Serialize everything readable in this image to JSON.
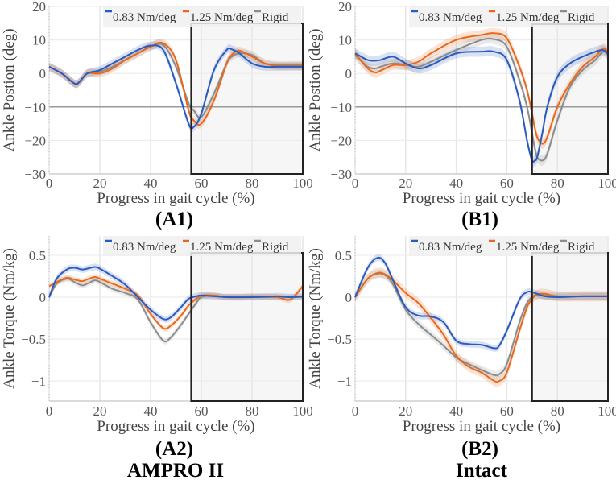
{
  "colors": {
    "blue": "#2a5bbf",
    "orange": "#e8681e",
    "gray": "#8c8c8c"
  },
  "legend": [
    "0.83 Nm/deg",
    "1.25 Nm/deg",
    "Rigid"
  ],
  "columns": {
    "A": "AMPRO II",
    "B": "Intact"
  },
  "chart_data": [
    {
      "id": "A1",
      "type": "line",
      "title": "(A1)",
      "xlabel": "Progress in gait cycle (%)",
      "ylabel": "Ankle Postion (deg)",
      "xlim": [
        0,
        100
      ],
      "ylim": [
        -30,
        20
      ],
      "xticks": [
        "0",
        "20",
        "40",
        "60",
        "80",
        "100"
      ],
      "yticks": [
        "20",
        "10",
        "0",
        "−10",
        "−20",
        "−30"
      ],
      "ytick_values": [
        20,
        10,
        0,
        -10,
        -20,
        -30
      ],
      "highlight_y": -10,
      "shaded_region": [
        56,
        100
      ],
      "x": [
        0,
        5,
        10,
        12,
        15,
        20,
        25,
        30,
        35,
        40,
        45,
        50,
        55,
        57,
        60,
        65,
        70,
        72,
        75,
        80,
        85,
        90,
        95,
        100
      ],
      "series": [
        {
          "name": "0.83 Nm/deg",
          "color": "blue",
          "std": 1.2,
          "values": [
            2,
            0,
            -3,
            -2.5,
            0,
            1,
            3,
            5,
            7,
            8.3,
            7,
            -3,
            -15,
            -16,
            -12,
            1,
            7,
            7.2,
            6,
            3,
            2,
            2,
            2,
            2
          ]
        },
        {
          "name": "1.25 Nm/deg",
          "color": "orange",
          "std": 1.2,
          "values": [
            2,
            0,
            -3,
            -2.5,
            0,
            0,
            1.5,
            4,
            6,
            8,
            9,
            4,
            -11,
            -14,
            -15,
            -8,
            3,
            5.5,
            6.8,
            5,
            3,
            2.2,
            2.2,
            2.2
          ]
        },
        {
          "name": "Rigid",
          "color": "gray",
          "std": 1.2,
          "values": [
            2,
            0,
            -3,
            -2.5,
            0,
            0.5,
            2,
            4,
            6,
            8,
            8.5,
            2,
            -9,
            -11,
            -13,
            -6,
            3,
            5,
            6,
            5.5,
            3,
            2.5,
            2.5,
            2.5
          ]
        }
      ]
    },
    {
      "id": "B1",
      "type": "line",
      "title": "(B1)",
      "xlabel": "Progress in gait cycle (%)",
      "ylabel": "Ankle Postion (deg)",
      "xlim": [
        0,
        100
      ],
      "ylim": [
        -30,
        20
      ],
      "xticks": [
        "0",
        "20",
        "40",
        "60",
        "80",
        "100"
      ],
      "yticks": [
        "20",
        "10",
        "0",
        "−10",
        "−20",
        "−30"
      ],
      "ytick_values": [
        20,
        10,
        0,
        -10,
        -20,
        -30
      ],
      "highlight_y": -10,
      "shaded_region": [
        70,
        100
      ],
      "x": [
        0,
        5,
        8,
        10,
        15,
        20,
        25,
        30,
        40,
        50,
        55,
        60,
        65,
        68,
        70,
        71,
        72,
        74,
        76,
        80,
        85,
        90,
        95,
        98,
        100
      ],
      "series": [
        {
          "name": "0.83 Nm/deg",
          "color": "blue",
          "std": 1.5,
          "values": [
            6,
            4,
            3.8,
            4,
            5,
            3,
            1.5,
            2.5,
            6,
            6.5,
            6.5,
            4,
            -8,
            -20,
            -26,
            -26,
            -25,
            -18,
            -10,
            -1,
            3,
            5,
            6.5,
            7,
            6
          ]
        },
        {
          "name": "1.25 Nm/deg",
          "color": "orange",
          "std": 1.5,
          "values": [
            6,
            1.5,
            0.3,
            0.8,
            2.5,
            2.5,
            3.5,
            6,
            10,
            11.5,
            12,
            10.5,
            2,
            -5,
            -12,
            -16,
            -19,
            -21,
            -19,
            -10,
            -3,
            2,
            5,
            7.5,
            6.5
          ]
        },
        {
          "name": "Rigid",
          "color": "gray",
          "std": 1.5,
          "values": [
            5.5,
            2,
            1.5,
            2,
            3,
            2.5,
            2,
            3.5,
            7,
            10,
            10.2,
            8,
            -2,
            -10,
            -18,
            -22,
            -25,
            -26,
            -24,
            -14,
            -4,
            1,
            4,
            6.5,
            5.5
          ]
        }
      ]
    },
    {
      "id": "A2",
      "type": "line",
      "title": "(A2)",
      "xlabel": "Progress in gait cycle (%)",
      "ylabel": "Ankle Torque (Nm/kg)",
      "xlim": [
        0,
        100
      ],
      "ylim": [
        -1.24,
        0.73
      ],
      "xticks": [
        "0",
        "20",
        "40",
        "60",
        "80",
        "100"
      ],
      "yticks": [
        "0.5",
        "0",
        "−0.5",
        "−1"
      ],
      "ytick_values": [
        0.5,
        0,
        -0.5,
        -1
      ],
      "shaded_region": [
        56,
        100
      ],
      "x": [
        0,
        3,
        7,
        10,
        13,
        15,
        18,
        20,
        25,
        30,
        35,
        40,
        45,
        48,
        52,
        55,
        58,
        60,
        65,
        70,
        80,
        90,
        95,
        100
      ],
      "series": [
        {
          "name": "0.83 Nm/deg",
          "color": "blue",
          "std": 0.04,
          "values": [
            0,
            0.22,
            0.33,
            0.35,
            0.33,
            0.34,
            0.36,
            0.34,
            0.25,
            0.15,
            0,
            -0.15,
            -0.26,
            -0.24,
            -0.12,
            -0.02,
            0.01,
            0.02,
            0.01,
            0,
            0,
            0.01,
            0,
            0.01
          ]
        },
        {
          "name": "1.25 Nm/deg",
          "color": "orange",
          "std": 0.035,
          "values": [
            0.13,
            0.18,
            0.23,
            0.21,
            0.19,
            0.21,
            0.24,
            0.22,
            0.16,
            0.1,
            0.02,
            -0.2,
            -0.37,
            -0.34,
            -0.22,
            -0.1,
            -0.02,
            0.02,
            0.02,
            0,
            0.01,
            0,
            -0.03,
            0.13
          ]
        },
        {
          "name": "Rigid",
          "color": "gray",
          "std": 0.035,
          "values": [
            0,
            0.16,
            0.22,
            0.18,
            0.14,
            0.16,
            0.2,
            0.18,
            0.1,
            0.05,
            -0.03,
            -0.3,
            -0.52,
            -0.48,
            -0.33,
            -0.2,
            -0.07,
            0,
            0.02,
            0,
            0,
            0,
            0,
            0
          ]
        }
      ]
    },
    {
      "id": "B2",
      "type": "line",
      "title": "(B2)",
      "xlabel": "Progress in gait cycle (%)",
      "ylabel": "Ankle Torque (Nm/kg)",
      "xlim": [
        0,
        100
      ],
      "ylim": [
        -1.24,
        0.73
      ],
      "xticks": [
        "0",
        "20",
        "40",
        "60",
        "80",
        "100"
      ],
      "yticks": [
        "0.5",
        "0",
        "−0.5",
        "−1"
      ],
      "ytick_values": [
        0.5,
        0,
        -0.5,
        -1
      ],
      "shaded_region": [
        70,
        100
      ],
      "x": [
        0,
        5,
        9,
        12,
        15,
        20,
        25,
        30,
        35,
        40,
        45,
        50,
        55,
        57,
        60,
        65,
        68,
        70,
        72,
        75,
        80,
        90,
        100
      ],
      "series": [
        {
          "name": "0.83 Nm/deg",
          "color": "blue",
          "std": 0.04,
          "values": [
            0,
            0.35,
            0.47,
            0.4,
            0.2,
            -0.12,
            -0.22,
            -0.23,
            -0.3,
            -0.52,
            -0.56,
            -0.57,
            -0.61,
            -0.58,
            -0.4,
            -0.03,
            0.06,
            0.06,
            0.04,
            0.01,
            0,
            0.01,
            0.01
          ]
        },
        {
          "name": "1.25 Nm/deg",
          "color": "orange",
          "std": 0.06,
          "values": [
            0,
            0.22,
            0.29,
            0.27,
            0.2,
            0.05,
            -0.07,
            -0.25,
            -0.45,
            -0.7,
            -0.83,
            -0.9,
            -1.0,
            -1.0,
            -0.9,
            -0.4,
            -0.12,
            -0.02,
            0.03,
            0.04,
            0.01,
            0.01,
            0.01
          ]
        },
        {
          "name": "Rigid",
          "color": "gray",
          "std": 0.05,
          "values": [
            0,
            0.22,
            0.28,
            0.26,
            0.15,
            -0.15,
            -0.32,
            -0.45,
            -0.58,
            -0.72,
            -0.8,
            -0.87,
            -0.93,
            -0.92,
            -0.8,
            -0.3,
            -0.07,
            0,
            0.03,
            0.02,
            0.01,
            0.01,
            0.01
          ]
        }
      ]
    }
  ]
}
